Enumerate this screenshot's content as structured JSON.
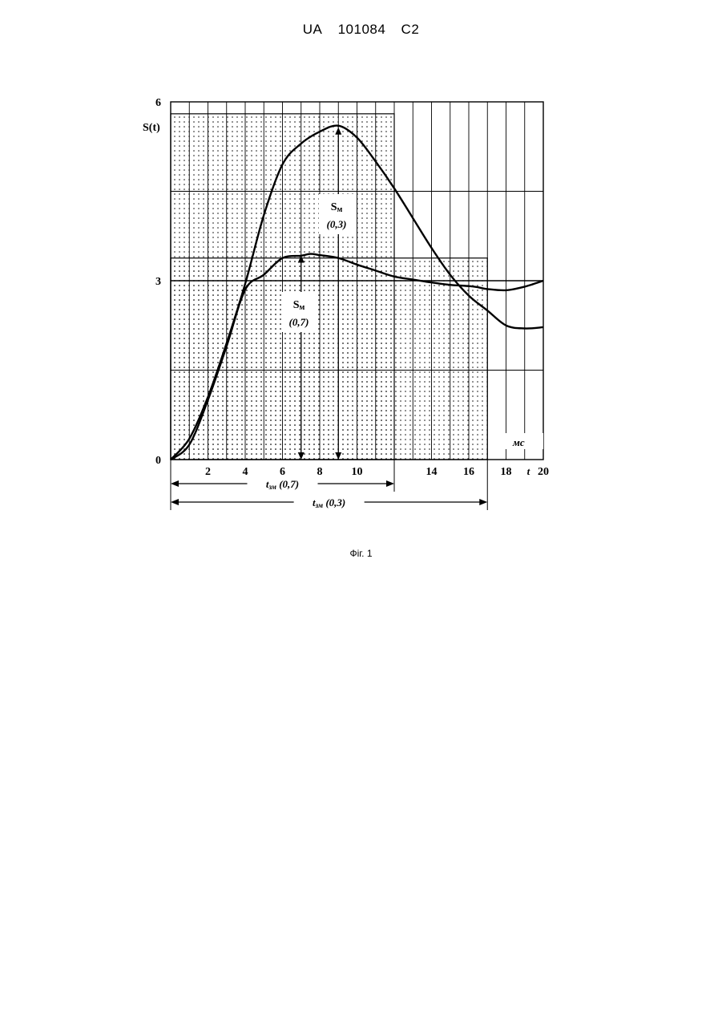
{
  "header": {
    "country": "UA",
    "number": "101084",
    "kind": "C2"
  },
  "caption": "Фіг. 1",
  "chart_data": {
    "type": "line",
    "ylabel": "S(t)",
    "xunit": "мс",
    "xname": "t",
    "xlim": [
      0,
      20
    ],
    "ylim": [
      0,
      6
    ],
    "grid": true,
    "x_tick_labels": [
      "2",
      "4",
      "6",
      "8",
      "10",
      "14",
      "16",
      "18",
      "20"
    ],
    "x_tick_values": [
      2,
      4,
      6,
      8,
      10,
      14,
      16,
      18,
      20
    ],
    "y_tick_labels": [
      "0",
      "3",
      "6"
    ],
    "y_tick_values": [
      0,
      3,
      6
    ],
    "reference_line": 3,
    "series": [
      {
        "x": [
          0,
          1,
          2,
          3,
          4,
          5,
          6,
          7,
          7.5,
          8,
          9,
          10,
          11,
          12,
          13,
          14,
          15,
          16,
          16.5,
          17,
          18,
          19,
          20
        ],
        "y": [
          0,
          0.25,
          1.0,
          1.9,
          2.85,
          3.1,
          3.38,
          3.42,
          3.45,
          3.43,
          3.38,
          3.27,
          3.17,
          3.07,
          3.02,
          2.97,
          2.93,
          2.91,
          2.89,
          2.86,
          2.84,
          2.9,
          3.0
        ]
      },
      {
        "x": [
          0,
          1,
          2,
          3,
          4,
          5,
          6,
          7,
          8,
          9,
          10,
          11,
          12,
          13,
          14,
          15,
          16,
          17,
          18,
          19,
          20
        ],
        "y": [
          0,
          0.35,
          1.05,
          1.95,
          2.95,
          4.1,
          4.95,
          5.3,
          5.5,
          5.6,
          5.4,
          5.0,
          4.55,
          4.05,
          3.55,
          3.1,
          2.75,
          2.5,
          2.25,
          2.2,
          2.22
        ]
      }
    ],
    "annotations": [
      {
        "main": "S",
        "sub": "м",
        "param": "(0,3)",
        "x": 9,
        "peak": 5.6
      },
      {
        "main": "S",
        "sub": "м",
        "param": "(0,7)",
        "x": 7,
        "peak": 3.45
      }
    ],
    "shaded_regions": [
      {
        "x_from": 0,
        "x_to": 12,
        "y_to": 5.8
      },
      {
        "x_from": 0,
        "x_to": 17,
        "y_to": 3.38
      }
    ],
    "spans": [
      {
        "label": "t",
        "sub": "зм",
        "param": "(0,7)",
        "x_from": 0,
        "x_to": 12
      },
      {
        "label": "t",
        "sub": "зм",
        "param": "(0,3)",
        "x_from": 0,
        "x_to": 17
      }
    ]
  }
}
